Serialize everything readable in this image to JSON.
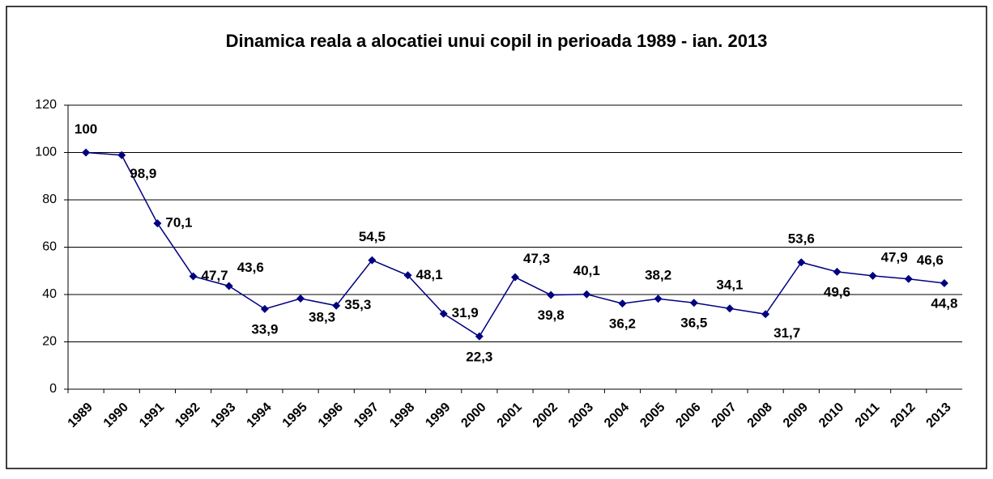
{
  "chart_data": {
    "type": "line",
    "title": "Dinamica reala a alocatiei unui copil in perioada 1989 - ian. 2013",
    "categories": [
      "1989",
      "1990",
      "1991",
      "1992",
      "1993",
      "1994",
      "1995",
      "1996",
      "1997",
      "1998",
      "1999",
      "2000",
      "2001",
      "2002",
      "2003",
      "2004",
      "2005",
      "2006",
      "2007",
      "2008",
      "2009",
      "2010",
      "2011",
      "2012",
      "2013"
    ],
    "values": [
      100,
      98.9,
      70.1,
      47.7,
      43.6,
      33.9,
      38.3,
      35.3,
      54.5,
      48.1,
      31.9,
      22.3,
      47.3,
      39.8,
      40.1,
      36.2,
      38.2,
      36.5,
      34.1,
      31.7,
      53.6,
      49.6,
      47.9,
      46.6,
      44.8
    ],
    "value_labels": [
      "100",
      "98,9",
      "70,1",
      "47,7",
      "43,6",
      "33,9",
      "38,3",
      "35,3",
      "54,5",
      "48,1",
      "31,9",
      "22,3",
      "47,3",
      "39,8",
      "40,1",
      "36,2",
      "38,2",
      "36,5",
      "34,1",
      "31,7",
      "53,6",
      "49,6",
      "47,9",
      "46,6",
      "44,8"
    ],
    "color": "#000080",
    "ylim": [
      0,
      120
    ],
    "yticks": [
      0,
      20,
      40,
      60,
      80,
      100,
      120
    ],
    "grid": true
  }
}
